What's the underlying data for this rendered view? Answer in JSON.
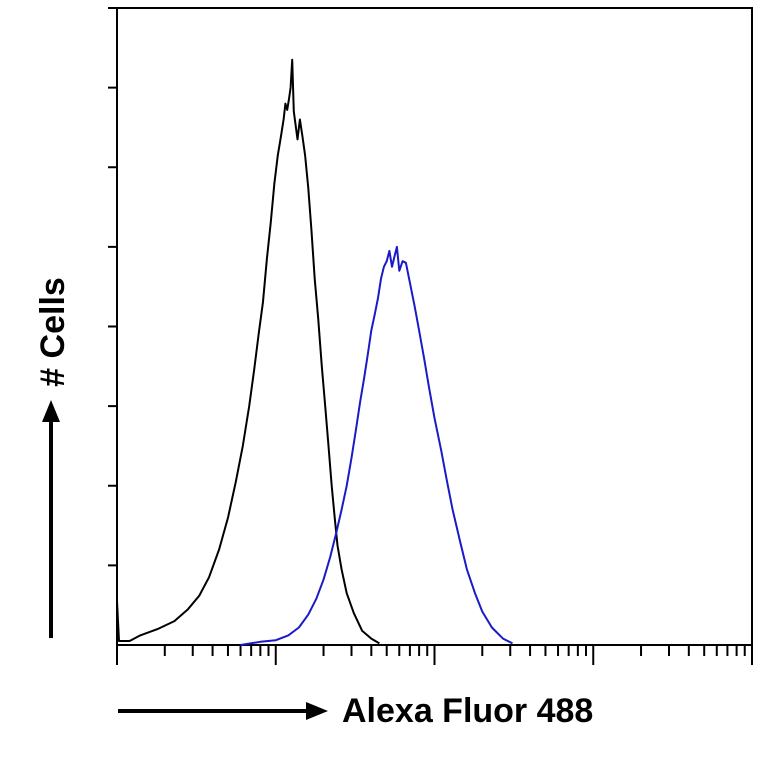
{
  "chart_data": {
    "type": "line",
    "title": "",
    "xlabel": "Alexa Fluor 488",
    "ylabel": "# Cells",
    "x_scale": "log",
    "xlim": [
      1,
      10000
    ],
    "ylim": [
      0,
      8
    ],
    "grid": false,
    "legend": "none",
    "series": [
      {
        "color": "#000000",
        "points": [
          [
            1.0,
            0.55
          ],
          [
            1.03,
            0.05
          ],
          [
            1.2,
            0.05
          ],
          [
            1.4,
            0.12
          ],
          [
            1.8,
            0.2
          ],
          [
            2.3,
            0.3
          ],
          [
            2.8,
            0.45
          ],
          [
            3.3,
            0.62
          ],
          [
            3.8,
            0.85
          ],
          [
            4.4,
            1.2
          ],
          [
            5.0,
            1.6
          ],
          [
            5.6,
            2.05
          ],
          [
            6.2,
            2.5
          ],
          [
            6.8,
            3.0
          ],
          [
            7.3,
            3.45
          ],
          [
            7.8,
            3.9
          ],
          [
            8.3,
            4.3
          ],
          [
            8.8,
            4.85
          ],
          [
            9.3,
            5.3
          ],
          [
            9.8,
            5.8
          ],
          [
            10.3,
            6.15
          ],
          [
            10.8,
            6.4
          ],
          [
            11.2,
            6.6
          ],
          [
            11.5,
            6.8
          ],
          [
            11.8,
            6.72
          ],
          [
            12.1,
            6.85
          ],
          [
            12.4,
            7.0
          ],
          [
            12.7,
            7.35
          ],
          [
            13.0,
            6.7
          ],
          [
            13.3,
            6.55
          ],
          [
            13.7,
            6.35
          ],
          [
            14.2,
            6.6
          ],
          [
            14.7,
            6.4
          ],
          [
            15.3,
            6.15
          ],
          [
            16.0,
            5.75
          ],
          [
            16.8,
            5.2
          ],
          [
            17.6,
            4.6
          ],
          [
            18.5,
            4.1
          ],
          [
            19.5,
            3.5
          ],
          [
            20.5,
            3.0
          ],
          [
            21.5,
            2.5
          ],
          [
            22.5,
            2.0
          ],
          [
            23.5,
            1.6
          ],
          [
            24.5,
            1.25
          ],
          [
            26.0,
            0.95
          ],
          [
            28.0,
            0.65
          ],
          [
            31.0,
            0.4
          ],
          [
            35.0,
            0.18
          ],
          [
            40.0,
            0.08
          ],
          [
            45.0,
            0.02
          ]
        ]
      },
      {
        "color": "#1a1ac8",
        "points": [
          [
            6.0,
            0.0
          ],
          [
            8.0,
            0.04
          ],
          [
            10.0,
            0.06
          ],
          [
            12.0,
            0.12
          ],
          [
            14.0,
            0.22
          ],
          [
            16.0,
            0.38
          ],
          [
            18.0,
            0.58
          ],
          [
            20.0,
            0.82
          ],
          [
            22.0,
            1.1
          ],
          [
            24.0,
            1.4
          ],
          [
            26.0,
            1.7
          ],
          [
            28.0,
            2.0
          ],
          [
            30.0,
            2.35
          ],
          [
            32.0,
            2.7
          ],
          [
            34.0,
            3.05
          ],
          [
            36.0,
            3.35
          ],
          [
            38.0,
            3.65
          ],
          [
            40.0,
            3.95
          ],
          [
            42.0,
            4.15
          ],
          [
            44.0,
            4.35
          ],
          [
            46.0,
            4.6
          ],
          [
            48.0,
            4.75
          ],
          [
            50.0,
            4.82
          ],
          [
            52.0,
            4.95
          ],
          [
            54.0,
            4.75
          ],
          [
            56.0,
            4.88
          ],
          [
            58.0,
            5.0
          ],
          [
            60.0,
            4.7
          ],
          [
            63.0,
            4.82
          ],
          [
            66.0,
            4.8
          ],
          [
            70.0,
            4.55
          ],
          [
            75.0,
            4.25
          ],
          [
            80.0,
            3.95
          ],
          [
            86.0,
            3.6
          ],
          [
            92.0,
            3.25
          ],
          [
            100.0,
            2.85
          ],
          [
            110.0,
            2.45
          ],
          [
            120.0,
            2.05
          ],
          [
            130.0,
            1.7
          ],
          [
            145.0,
            1.3
          ],
          [
            160.0,
            0.95
          ],
          [
            180.0,
            0.65
          ],
          [
            200.0,
            0.42
          ],
          [
            230.0,
            0.22
          ],
          [
            270.0,
            0.08
          ],
          [
            310.0,
            0.02
          ]
        ]
      }
    ]
  }
}
